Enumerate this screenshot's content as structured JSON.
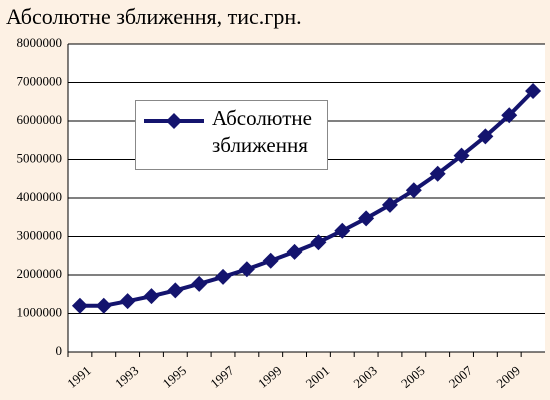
{
  "chart_data": {
    "type": "line",
    "title": "Абсолютне зближення, тис.грн.",
    "categories": [
      "1991",
      null,
      "1993",
      null,
      "1995",
      null,
      "1997",
      null,
      "1999",
      null,
      "2001",
      null,
      "2003",
      null,
      "2005",
      null,
      "2007",
      null,
      "2009",
      null
    ],
    "series": [
      {
        "name": "Абсолютне зближення",
        "color": "#14146e",
        "values": [
          1200000,
          1200000,
          1320000,
          1450000,
          1600000,
          1770000,
          1950000,
          2150000,
          2370000,
          2600000,
          2850000,
          3150000,
          3470000,
          3820000,
          4200000,
          4630000,
          5100000,
          5600000,
          6150000,
          6780000
        ]
      }
    ],
    "ylim": [
      0,
      8000000
    ],
    "yticks": [
      0,
      1000000,
      2000000,
      3000000,
      4000000,
      5000000,
      6000000,
      7000000,
      8000000
    ],
    "grid": true
  }
}
